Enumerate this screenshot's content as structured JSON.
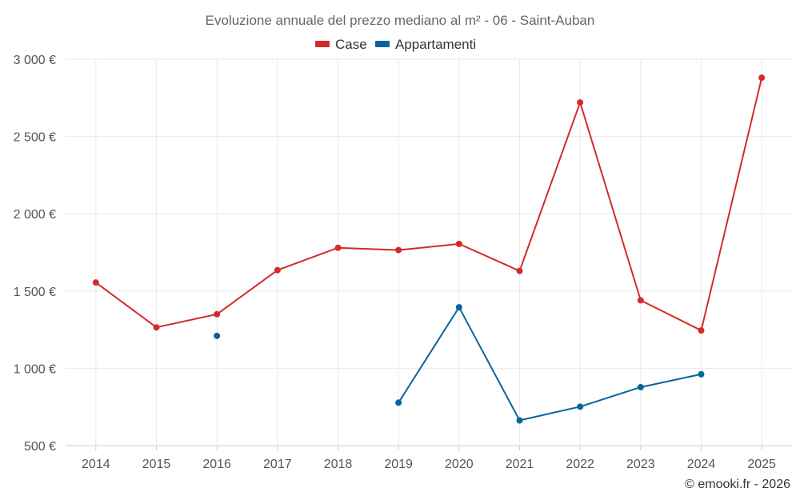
{
  "chart_data": {
    "type": "line",
    "title": "Evoluzione annuale del prezzo mediano al m² - 06 - Saint-Auban",
    "categories": [
      "2014",
      "2015",
      "2016",
      "2017",
      "2018",
      "2019",
      "2020",
      "2021",
      "2022",
      "2023",
      "2024",
      "2025"
    ],
    "ylim": [
      500,
      3000
    ],
    "yticks": [
      500,
      1000,
      1500,
      2000,
      2500,
      3000
    ],
    "ytick_labels": [
      "500 €",
      "1 000 €",
      "1 500 €",
      "2 000 €",
      "2 500 €",
      "3 000 €"
    ],
    "legend_position": "top-center",
    "grid": true,
    "series": [
      {
        "name": "Case",
        "color": "#d32a2a",
        "values": [
          1555,
          1265,
          1350,
          1635,
          1780,
          1765,
          1805,
          1630,
          2720,
          1440,
          1245,
          2880
        ]
      },
      {
        "name": "Appartamenti",
        "color": "#0a649b",
        "values": [
          null,
          null,
          1210,
          null,
          null,
          778,
          1395,
          663,
          752,
          878,
          962,
          null
        ]
      }
    ]
  },
  "credit": "© emooki.fr - 2026"
}
